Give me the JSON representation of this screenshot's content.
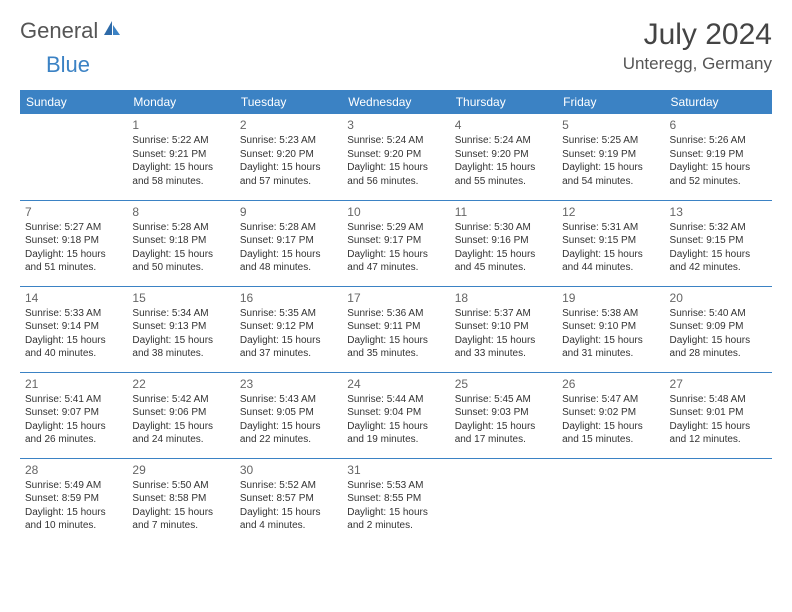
{
  "brand": {
    "text1": "General",
    "text2": "Blue",
    "text1_color": "#555555",
    "text2_color": "#3b82c4"
  },
  "title": "July 2024",
  "location": "Unteregg, Germany",
  "header_bg": "#3b82c4",
  "header_fg": "#ffffff",
  "border_color": "#3b82c4",
  "days_of_week": [
    "Sunday",
    "Monday",
    "Tuesday",
    "Wednesday",
    "Thursday",
    "Friday",
    "Saturday"
  ],
  "weeks": [
    [
      {
        "num": "",
        "sunrise": "",
        "sunset": "",
        "daylight": ""
      },
      {
        "num": "1",
        "sunrise": "Sunrise: 5:22 AM",
        "sunset": "Sunset: 9:21 PM",
        "daylight": "Daylight: 15 hours and 58 minutes."
      },
      {
        "num": "2",
        "sunrise": "Sunrise: 5:23 AM",
        "sunset": "Sunset: 9:20 PM",
        "daylight": "Daylight: 15 hours and 57 minutes."
      },
      {
        "num": "3",
        "sunrise": "Sunrise: 5:24 AM",
        "sunset": "Sunset: 9:20 PM",
        "daylight": "Daylight: 15 hours and 56 minutes."
      },
      {
        "num": "4",
        "sunrise": "Sunrise: 5:24 AM",
        "sunset": "Sunset: 9:20 PM",
        "daylight": "Daylight: 15 hours and 55 minutes."
      },
      {
        "num": "5",
        "sunrise": "Sunrise: 5:25 AM",
        "sunset": "Sunset: 9:19 PM",
        "daylight": "Daylight: 15 hours and 54 minutes."
      },
      {
        "num": "6",
        "sunrise": "Sunrise: 5:26 AM",
        "sunset": "Sunset: 9:19 PM",
        "daylight": "Daylight: 15 hours and 52 minutes."
      }
    ],
    [
      {
        "num": "7",
        "sunrise": "Sunrise: 5:27 AM",
        "sunset": "Sunset: 9:18 PM",
        "daylight": "Daylight: 15 hours and 51 minutes."
      },
      {
        "num": "8",
        "sunrise": "Sunrise: 5:28 AM",
        "sunset": "Sunset: 9:18 PM",
        "daylight": "Daylight: 15 hours and 50 minutes."
      },
      {
        "num": "9",
        "sunrise": "Sunrise: 5:28 AM",
        "sunset": "Sunset: 9:17 PM",
        "daylight": "Daylight: 15 hours and 48 minutes."
      },
      {
        "num": "10",
        "sunrise": "Sunrise: 5:29 AM",
        "sunset": "Sunset: 9:17 PM",
        "daylight": "Daylight: 15 hours and 47 minutes."
      },
      {
        "num": "11",
        "sunrise": "Sunrise: 5:30 AM",
        "sunset": "Sunset: 9:16 PM",
        "daylight": "Daylight: 15 hours and 45 minutes."
      },
      {
        "num": "12",
        "sunrise": "Sunrise: 5:31 AM",
        "sunset": "Sunset: 9:15 PM",
        "daylight": "Daylight: 15 hours and 44 minutes."
      },
      {
        "num": "13",
        "sunrise": "Sunrise: 5:32 AM",
        "sunset": "Sunset: 9:15 PM",
        "daylight": "Daylight: 15 hours and 42 minutes."
      }
    ],
    [
      {
        "num": "14",
        "sunrise": "Sunrise: 5:33 AM",
        "sunset": "Sunset: 9:14 PM",
        "daylight": "Daylight: 15 hours and 40 minutes."
      },
      {
        "num": "15",
        "sunrise": "Sunrise: 5:34 AM",
        "sunset": "Sunset: 9:13 PM",
        "daylight": "Daylight: 15 hours and 38 minutes."
      },
      {
        "num": "16",
        "sunrise": "Sunrise: 5:35 AM",
        "sunset": "Sunset: 9:12 PM",
        "daylight": "Daylight: 15 hours and 37 minutes."
      },
      {
        "num": "17",
        "sunrise": "Sunrise: 5:36 AM",
        "sunset": "Sunset: 9:11 PM",
        "daylight": "Daylight: 15 hours and 35 minutes."
      },
      {
        "num": "18",
        "sunrise": "Sunrise: 5:37 AM",
        "sunset": "Sunset: 9:10 PM",
        "daylight": "Daylight: 15 hours and 33 minutes."
      },
      {
        "num": "19",
        "sunrise": "Sunrise: 5:38 AM",
        "sunset": "Sunset: 9:10 PM",
        "daylight": "Daylight: 15 hours and 31 minutes."
      },
      {
        "num": "20",
        "sunrise": "Sunrise: 5:40 AM",
        "sunset": "Sunset: 9:09 PM",
        "daylight": "Daylight: 15 hours and 28 minutes."
      }
    ],
    [
      {
        "num": "21",
        "sunrise": "Sunrise: 5:41 AM",
        "sunset": "Sunset: 9:07 PM",
        "daylight": "Daylight: 15 hours and 26 minutes."
      },
      {
        "num": "22",
        "sunrise": "Sunrise: 5:42 AM",
        "sunset": "Sunset: 9:06 PM",
        "daylight": "Daylight: 15 hours and 24 minutes."
      },
      {
        "num": "23",
        "sunrise": "Sunrise: 5:43 AM",
        "sunset": "Sunset: 9:05 PM",
        "daylight": "Daylight: 15 hours and 22 minutes."
      },
      {
        "num": "24",
        "sunrise": "Sunrise: 5:44 AM",
        "sunset": "Sunset: 9:04 PM",
        "daylight": "Daylight: 15 hours and 19 minutes."
      },
      {
        "num": "25",
        "sunrise": "Sunrise: 5:45 AM",
        "sunset": "Sunset: 9:03 PM",
        "daylight": "Daylight: 15 hours and 17 minutes."
      },
      {
        "num": "26",
        "sunrise": "Sunrise: 5:47 AM",
        "sunset": "Sunset: 9:02 PM",
        "daylight": "Daylight: 15 hours and 15 minutes."
      },
      {
        "num": "27",
        "sunrise": "Sunrise: 5:48 AM",
        "sunset": "Sunset: 9:01 PM",
        "daylight": "Daylight: 15 hours and 12 minutes."
      }
    ],
    [
      {
        "num": "28",
        "sunrise": "Sunrise: 5:49 AM",
        "sunset": "Sunset: 8:59 PM",
        "daylight": "Daylight: 15 hours and 10 minutes."
      },
      {
        "num": "29",
        "sunrise": "Sunrise: 5:50 AM",
        "sunset": "Sunset: 8:58 PM",
        "daylight": "Daylight: 15 hours and 7 minutes."
      },
      {
        "num": "30",
        "sunrise": "Sunrise: 5:52 AM",
        "sunset": "Sunset: 8:57 PM",
        "daylight": "Daylight: 15 hours and 4 minutes."
      },
      {
        "num": "31",
        "sunrise": "Sunrise: 5:53 AM",
        "sunset": "Sunset: 8:55 PM",
        "daylight": "Daylight: 15 hours and 2 minutes."
      },
      {
        "num": "",
        "sunrise": "",
        "sunset": "",
        "daylight": ""
      },
      {
        "num": "",
        "sunrise": "",
        "sunset": "",
        "daylight": ""
      },
      {
        "num": "",
        "sunrise": "",
        "sunset": "",
        "daylight": ""
      }
    ]
  ]
}
